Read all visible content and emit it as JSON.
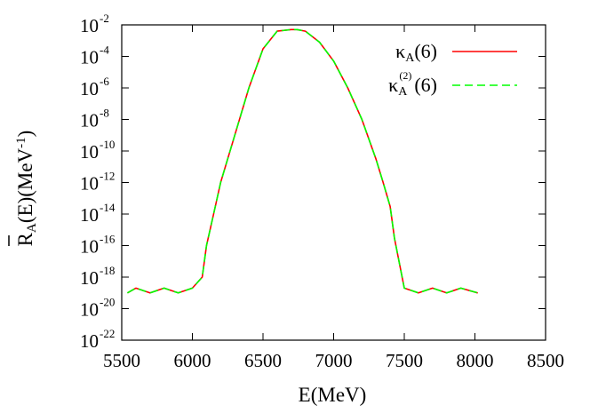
{
  "chart_data": {
    "type": "line",
    "xlabel": "E(MeV)",
    "ylabel": {
      "base": "R",
      "sub": "A",
      "mid": "(E)(MeV",
      "sup": "-1",
      "end": ")"
    },
    "xlim": [
      5500,
      8500
    ],
    "ylim": [
      1e-22,
      0.01
    ],
    "yscale": "log",
    "grid": false,
    "legend_position": "top-right",
    "x_ticks": [
      "5500",
      "6000",
      "6500",
      "7000",
      "7500",
      "8000",
      "8500"
    ],
    "y_ticks": [
      {
        "base": "10",
        "exp": "-22"
      },
      {
        "base": "10",
        "exp": "-20"
      },
      {
        "base": "10",
        "exp": "-18"
      },
      {
        "base": "10",
        "exp": "-16"
      },
      {
        "base": "10",
        "exp": "-14"
      },
      {
        "base": "10",
        "exp": "-12"
      },
      {
        "base": "10",
        "exp": "-10"
      },
      {
        "base": "10",
        "exp": "-8"
      },
      {
        "base": "10",
        "exp": "-6"
      },
      {
        "base": "10",
        "exp": "-4"
      },
      {
        "base": "10",
        "exp": "-2"
      }
    ],
    "series": [
      {
        "legend": {
          "base": "κ",
          "sub": "A",
          "sup": "",
          "end": "(6)"
        },
        "color": "#ff0000",
        "style": "solid",
        "x": [
          5540,
          5600,
          5700,
          5800,
          5900,
          6000,
          6070,
          6100,
          6150,
          6200,
          6300,
          6400,
          6500,
          6600,
          6700,
          6740,
          6800,
          6900,
          7000,
          7100,
          7200,
          7300,
          7350,
          7400,
          7430,
          7500,
          7600,
          7700,
          7800,
          7900,
          8020
        ],
        "y": [
          1e-19,
          2e-19,
          1e-19,
          2e-19,
          1e-19,
          2e-19,
          1e-18,
          1e-16,
          1e-14,
          1e-12,
          1e-09,
          1e-06,
          0.0003,
          0.004,
          0.005,
          0.005,
          0.004,
          0.0008,
          5e-05,
          1e-06,
          1e-08,
          3e-11,
          1e-12,
          3e-14,
          3e-16,
          2e-19,
          1e-19,
          2e-19,
          1e-19,
          2e-19,
          1e-19
        ]
      },
      {
        "legend": {
          "base": "κ",
          "sub": "A",
          "sup": "(2)",
          "end": "(6)"
        },
        "color": "#00ff00",
        "style": "dashed",
        "x": [
          5540,
          5600,
          5700,
          5800,
          5900,
          6000,
          6070,
          6100,
          6150,
          6200,
          6300,
          6400,
          6500,
          6600,
          6700,
          6740,
          6800,
          6900,
          7000,
          7100,
          7200,
          7300,
          7350,
          7400,
          7430,
          7500,
          7600,
          7700,
          7800,
          7900,
          8020
        ],
        "y": [
          1e-19,
          2e-19,
          1e-19,
          2e-19,
          1e-19,
          2e-19,
          1e-18,
          1e-16,
          1e-14,
          1e-12,
          1e-09,
          1e-06,
          0.0003,
          0.004,
          0.005,
          0.005,
          0.004,
          0.0008,
          5e-05,
          1e-06,
          1e-08,
          3e-11,
          1e-12,
          3e-14,
          3e-16,
          2e-19,
          1e-19,
          2e-19,
          1e-19,
          2e-19,
          1e-19
        ]
      }
    ]
  }
}
